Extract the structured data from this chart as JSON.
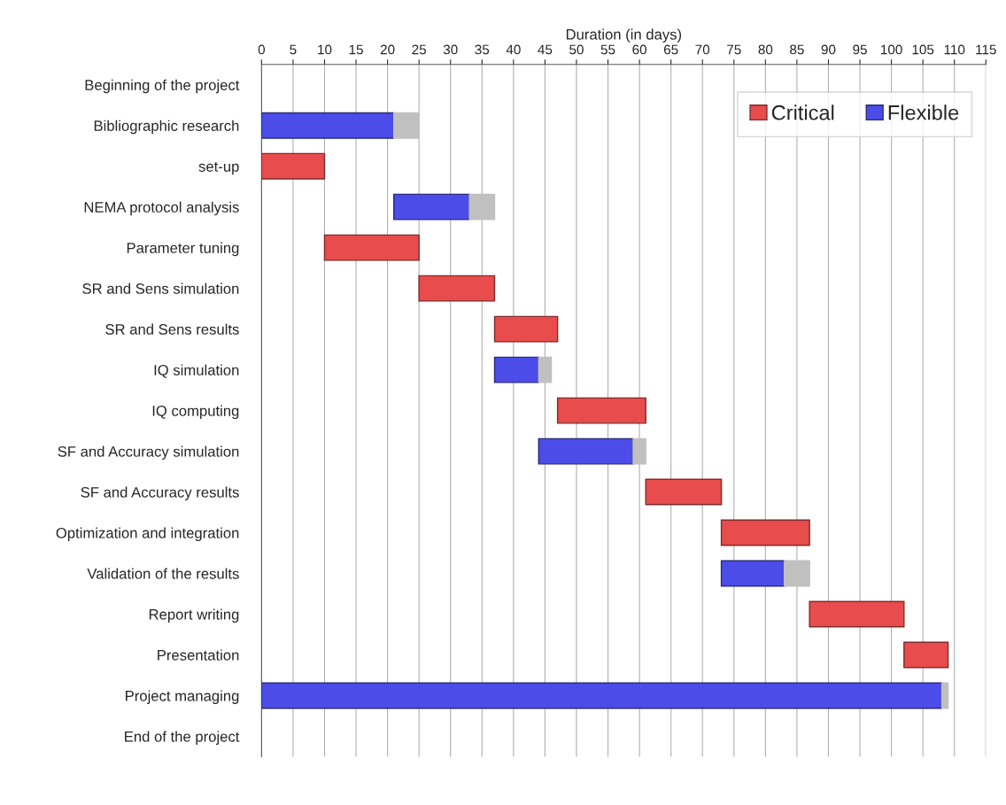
{
  "chart_data": {
    "type": "bar",
    "orientation": "horizontal",
    "xlabel": "Duration (in days)",
    "categories": [
      "Beginning of the project",
      "Bibliographic research",
      "set-up",
      "NEMA protocol analysis",
      "Parameter tuning",
      "SR and Sens simulation",
      "SR and Sens results",
      "IQ simulation",
      "IQ computing",
      "SF and Accuracy simulation",
      "SF and Accuracy results",
      "Optimization and integration",
      "Validation of the results",
      "Report writing",
      "Presentation",
      "Project managing",
      "End of the project"
    ],
    "series": [
      {
        "name": "Critical",
        "color": "#e84c4c",
        "base": [
          null,
          null,
          0,
          null,
          10,
          25,
          37,
          null,
          47,
          null,
          61,
          73,
          null,
          87,
          102,
          null,
          null
        ],
        "values": [
          null,
          null,
          10,
          null,
          15,
          12,
          10,
          null,
          14,
          null,
          12,
          14,
          null,
          15,
          7,
          null,
          null
        ]
      },
      {
        "name": "Flexible",
        "color": "#4c4ce8",
        "base": [
          null,
          0,
          null,
          21,
          null,
          null,
          null,
          37,
          null,
          44,
          null,
          null,
          73,
          null,
          null,
          0,
          null
        ],
        "values": [
          null,
          21,
          null,
          12,
          null,
          null,
          null,
          7,
          null,
          15,
          null,
          null,
          10,
          null,
          null,
          108,
          null
        ]
      },
      {
        "color": "#c0c0c0",
        "base": [
          null,
          21,
          null,
          33,
          null,
          null,
          null,
          44,
          null,
          59,
          null,
          null,
          83,
          null,
          null,
          108,
          null
        ],
        "values": [
          null,
          4,
          null,
          4,
          null,
          null,
          null,
          2,
          null,
          2,
          null,
          null,
          4,
          null,
          null,
          1,
          null
        ]
      }
    ],
    "xlim": [
      0,
      115
    ],
    "xticks": [
      0,
      5,
      10,
      15,
      20,
      25,
      30,
      35,
      40,
      45,
      50,
      55,
      60,
      65,
      70,
      75,
      80,
      85,
      90,
      95,
      100,
      105,
      110,
      115
    ],
    "grid": "x",
    "legend": "top right"
  }
}
